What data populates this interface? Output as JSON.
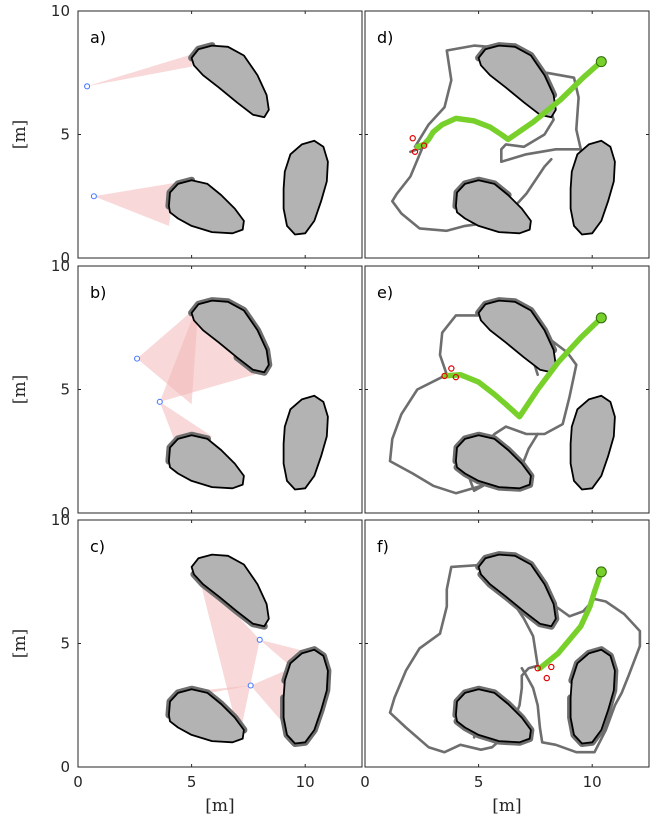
{
  "chart_data": {
    "type": "scatter",
    "x_label": "[m]",
    "y_label": "[m]",
    "xlim": [
      0,
      12.5
    ],
    "ylim": [
      0,
      10
    ],
    "x_ticks": [
      "0",
      "5",
      "10"
    ],
    "y_ticks": [
      "0",
      "5",
      "10"
    ],
    "colors": {
      "obstacle_fill": "#b3b3b3",
      "obstacle_edge": "#000000",
      "observed_edge": "#6e6e6e",
      "view_cone": "#f2b8b8",
      "sensor": "#4a7cff",
      "roadmap": "#6e6e6e",
      "path": "#77d12a",
      "start_marker": "#e00000",
      "goal_marker": "#77d12a"
    },
    "obstacles": [
      {
        "name": "top",
        "outline": [
          [
            5.0,
            8.1
          ],
          [
            5.3,
            8.45
          ],
          [
            5.9,
            8.6
          ],
          [
            6.6,
            8.55
          ],
          [
            7.3,
            8.2
          ],
          [
            7.9,
            7.4
          ],
          [
            8.3,
            6.6
          ],
          [
            8.4,
            6.0
          ],
          [
            8.2,
            5.7
          ],
          [
            7.7,
            5.8
          ],
          [
            7.0,
            6.3
          ],
          [
            6.2,
            6.9
          ],
          [
            5.5,
            7.4
          ],
          [
            5.1,
            7.8
          ]
        ]
      },
      {
        "name": "bottom-left",
        "outline": [
          [
            4.0,
            2.1
          ],
          [
            4.05,
            2.65
          ],
          [
            4.4,
            3.0
          ],
          [
            5.0,
            3.15
          ],
          [
            5.7,
            3.0
          ],
          [
            6.3,
            2.55
          ],
          [
            6.9,
            2.0
          ],
          [
            7.3,
            1.5
          ],
          [
            7.25,
            1.15
          ],
          [
            6.8,
            1.0
          ],
          [
            5.9,
            1.05
          ],
          [
            5.0,
            1.3
          ],
          [
            4.4,
            1.6
          ],
          [
            4.05,
            1.85
          ]
        ]
      },
      {
        "name": "right",
        "outline": [
          [
            9.1,
            3.5
          ],
          [
            9.35,
            4.2
          ],
          [
            9.85,
            4.6
          ],
          [
            10.4,
            4.75
          ],
          [
            10.8,
            4.5
          ],
          [
            11.0,
            3.9
          ],
          [
            10.95,
            3.1
          ],
          [
            10.7,
            2.3
          ],
          [
            10.4,
            1.5
          ],
          [
            10.0,
            1.0
          ],
          [
            9.55,
            0.95
          ],
          [
            9.2,
            1.3
          ],
          [
            9.05,
            2.0
          ],
          [
            9.05,
            2.8
          ]
        ]
      }
    ],
    "panels": [
      {
        "label": "a)",
        "observed": [
          {
            "obstacle": 0,
            "from": 0,
            "to": 2
          },
          {
            "obstacle": 1,
            "from": 0,
            "to": 3
          }
        ],
        "sensors": [
          {
            "x": 0.4,
            "y": 6.95,
            "cone": [
              [
                5.2,
                8.3
              ],
              [
                5.0,
                7.75
              ]
            ]
          },
          {
            "x": 0.7,
            "y": 2.5,
            "cone": [
              [
                4.3,
                3.05
              ],
              [
                4.0,
                1.3
              ]
            ]
          }
        ]
      },
      {
        "label": "b)",
        "observed": [
          {
            "obstacle": 0,
            "from": 0,
            "to": 10
          },
          {
            "obstacle": 1,
            "from": 0,
            "to": 4
          }
        ],
        "sensors": [
          {
            "x": 2.6,
            "y": 6.25,
            "cone": [
              [
                5.3,
                8.4
              ],
              [
                5.0,
                4.4
              ]
            ]
          },
          {
            "x": 3.6,
            "y": 4.5,
            "cone": [
              [
                5.0,
                7.8
              ],
              [
                8.3,
                5.75
              ],
              [
                4.6,
                2.1
              ],
              [
                5.9,
                3.1
              ]
            ]
          }
        ]
      },
      {
        "label": "c)",
        "observed": [
          {
            "obstacle": 0,
            "from": 8,
            "to": 13
          },
          {
            "obstacle": 1,
            "from": 0,
            "to": 7
          },
          {
            "obstacle": 2,
            "from": 0,
            "to": 13
          }
        ],
        "sensors": [
          {
            "x": 8.0,
            "y": 5.15,
            "cone": [
              [
                5.3,
                7.8
              ],
              [
                7.1,
                1.2
              ],
              [
                9.2,
                4.2
              ],
              [
                10.8,
                4.5
              ]
            ]
          },
          {
            "x": 7.6,
            "y": 3.3,
            "cone": [
              [
                4.3,
                3.0
              ],
              [
                5.8,
                3.0
              ],
              [
                9.2,
                1.6
              ],
              [
                10.9,
                4.6
              ]
            ]
          }
        ]
      },
      {
        "label": "d)",
        "observed": [
          {
            "obstacle": 0,
            "from": 0,
            "to": 6
          },
          {
            "obstacle": 1,
            "from": 0,
            "to": 5
          }
        ],
        "roadmap": [
          [
            [
              2.0,
              4.3
            ],
            [
              2.3,
              4.4
            ],
            [
              2.5,
              4.45
            ]
          ],
          [
            [
              2.2,
              4.5
            ],
            [
              2.8,
              5.4
            ],
            [
              3.5,
              6.1
            ],
            [
              3.8,
              7.2
            ],
            [
              3.6,
              8.4
            ],
            [
              4.8,
              8.6
            ],
            [
              6.1,
              8.5
            ],
            [
              6.8,
              8.0
            ],
            [
              7.3,
              7.5
            ],
            [
              7.7,
              6.9
            ],
            [
              8.1,
              6.2
            ],
            [
              8.3,
              5.6
            ],
            [
              7.9,
              5.0
            ],
            [
              7.0,
              4.5
            ],
            [
              6.2,
              4.6
            ],
            [
              6.0,
              4.4
            ],
            [
              6.0,
              3.9
            ],
            [
              7.1,
              4.2
            ],
            [
              8.4,
              4.4
            ],
            [
              9.5,
              4.4
            ],
            [
              9.3,
              5.2
            ],
            [
              9.4,
              6.5
            ],
            [
              9.2,
              7.3
            ],
            [
              8.0,
              7.5
            ],
            [
              7.0,
              7.2
            ],
            [
              6.3,
              7.4
            ],
            [
              5.8,
              7.9
            ],
            [
              5.4,
              8.2
            ]
          ],
          [
            [
              9.5,
              4.4
            ],
            [
              9.5,
              4.35
            ],
            [
              9.6,
              4.25
            ]
          ],
          [
            [
              2.5,
              4.4
            ],
            [
              2.0,
              3.3
            ],
            [
              1.4,
              2.6
            ],
            [
              1.2,
              2.3
            ],
            [
              1.6,
              1.8
            ],
            [
              2.4,
              1.2
            ],
            [
              3.6,
              1.1
            ],
            [
              4.4,
              1.3
            ],
            [
              5.2,
              1.4
            ],
            [
              6.4,
              1.9
            ],
            [
              7.1,
              2.6
            ],
            [
              7.9,
              3.7
            ],
            [
              8.2,
              4.0
            ]
          ],
          [
            [
              4.8,
              2.0
            ],
            [
              5.6,
              2.1
            ],
            [
              6.3,
              2.1
            ],
            [
              6.7,
              1.8
            ]
          ]
        ],
        "path": [
          [
            2.3,
            4.5
          ],
          [
            2.6,
            4.6
          ],
          [
            2.8,
            4.8
          ],
          [
            3.0,
            5.1
          ],
          [
            3.4,
            5.4
          ],
          [
            4.0,
            5.65
          ],
          [
            4.8,
            5.55
          ],
          [
            5.5,
            5.3
          ],
          [
            6.0,
            5.0
          ],
          [
            6.3,
            4.8
          ],
          [
            7.4,
            5.5
          ],
          [
            8.6,
            6.4
          ],
          [
            9.6,
            7.3
          ],
          [
            10.4,
            7.95
          ]
        ],
        "start": [
          [
            2.1,
            4.85
          ],
          [
            2.6,
            4.55
          ],
          [
            2.2,
            4.3
          ]
        ],
        "goal": [
          10.4,
          7.95
        ]
      },
      {
        "label": "e)",
        "observed": [
          {
            "obstacle": 0,
            "from": 0,
            "to": 6
          },
          {
            "obstacle": 1,
            "from": 0,
            "to": 13
          }
        ],
        "roadmap": [
          [
            [
              3.6,
              5.6
            ],
            [
              3.3,
              6.4
            ],
            [
              3.4,
              7.3
            ],
            [
              4.0,
              8.0
            ],
            [
              5.5,
              8.0
            ],
            [
              6.3,
              8.0
            ],
            [
              6.9,
              7.9
            ],
            [
              7.9,
              7.2
            ],
            [
              8.9,
              6.5
            ],
            [
              9.3,
              6.0
            ],
            [
              9.0,
              4.7
            ],
            [
              8.7,
              3.6
            ],
            [
              7.9,
              3.2
            ],
            [
              7.1,
              3.2
            ],
            [
              6.2,
              3.5
            ],
            [
              5.7,
              3.2
            ],
            [
              5.1,
              2.6
            ],
            [
              4.8,
              2.1
            ],
            [
              4.6,
              1.4
            ],
            [
              4.8,
              0.9
            ],
            [
              5.2,
              1.1
            ],
            [
              5.2,
              1.7
            ],
            [
              5.7,
              2.1
            ],
            [
              6.3,
              2.2
            ]
          ],
          [
            [
              3.6,
              5.6
            ],
            [
              2.3,
              5.0
            ],
            [
              1.6,
              4.0
            ],
            [
              1.2,
              3.0
            ],
            [
              1.1,
              2.1
            ],
            [
              2.1,
              1.6
            ],
            [
              3.0,
              1.1
            ],
            [
              4.0,
              0.8
            ],
            [
              5.5,
              1.2
            ],
            [
              6.3,
              1.4
            ],
            [
              6.9,
              1.9
            ],
            [
              7.2,
              2.6
            ],
            [
              7.6,
              3.2
            ]
          ],
          [
            [
              5.4,
              7.6
            ],
            [
              5.9,
              7.5
            ],
            [
              6.5,
              7.3
            ],
            [
              6.8,
              6.8
            ],
            [
              7.4,
              6.2
            ],
            [
              7.6,
              5.6
            ]
          ]
        ],
        "path": [
          [
            3.5,
            5.55
          ],
          [
            4.2,
            5.6
          ],
          [
            5.0,
            5.3
          ],
          [
            5.7,
            4.8
          ],
          [
            6.2,
            4.4
          ],
          [
            6.8,
            3.9
          ],
          [
            7.6,
            5.0
          ],
          [
            8.5,
            6.1
          ],
          [
            9.5,
            7.1
          ],
          [
            10.4,
            7.9
          ]
        ],
        "start": [
          [
            3.8,
            5.85
          ],
          [
            3.5,
            5.55
          ],
          [
            4.0,
            5.5
          ]
        ],
        "goal": [
          10.4,
          7.9
        ]
      },
      {
        "label": "f)",
        "observed": [
          {
            "obstacle": 0,
            "from": 0,
            "to": 13
          },
          {
            "obstacle": 1,
            "from": 0,
            "to": 13
          },
          {
            "obstacle": 2,
            "from": 0,
            "to": 13
          }
        ],
        "roadmap": [
          [
            [
              3.3,
              5.4
            ],
            [
              3.6,
              6.5
            ],
            [
              3.6,
              7.2
            ],
            [
              3.8,
              8.1
            ],
            [
              5.4,
              8.2
            ],
            [
              6.6,
              8.1
            ],
            [
              7.8,
              7.3
            ],
            [
              8.4,
              6.5
            ],
            [
              9.0,
              6.1
            ],
            [
              9.6,
              6.3
            ],
            [
              10.1,
              6.8
            ],
            [
              10.6,
              6.7
            ],
            [
              11.4,
              6.2
            ],
            [
              12.1,
              5.5
            ],
            [
              12.1,
              4.9
            ],
            [
              11.6,
              3.7
            ],
            [
              11.3,
              3.0
            ],
            [
              11.0,
              2.5
            ],
            [
              10.6,
              1.5
            ],
            [
              10.1,
              0.6
            ],
            [
              9.3,
              0.6
            ],
            [
              8.4,
              0.9
            ],
            [
              7.8,
              1.0
            ],
            [
              7.7,
              1.6
            ],
            [
              7.6,
              2.5
            ],
            [
              7.4,
              3.2
            ],
            [
              7.1,
              3.7
            ],
            [
              6.9,
              4.0
            ]
          ],
          [
            [
              3.3,
              5.4
            ],
            [
              2.4,
              4.8
            ],
            [
              1.8,
              3.9
            ],
            [
              1.3,
              2.8
            ],
            [
              1.1,
              2.2
            ],
            [
              1.8,
              1.6
            ],
            [
              2.8,
              0.8
            ],
            [
              3.5,
              0.6
            ],
            [
              4.2,
              0.9
            ],
            [
              5.1,
              0.7
            ],
            [
              5.6,
              0.8
            ],
            [
              6.2,
              1.3
            ],
            [
              6.5,
              1.8
            ],
            [
              6.8,
              2.5
            ],
            [
              6.9,
              3.2
            ],
            [
              6.9,
              3.7
            ],
            [
              7.2,
              4.0
            ],
            [
              7.6,
              4.1
            ]
          ],
          [
            [
              7.6,
              4.1
            ],
            [
              7.4,
              5.3
            ],
            [
              7.0,
              6.0
            ],
            [
              6.5,
              6.7
            ]
          ],
          [
            [
              4.8,
              1.2
            ],
            [
              5.0,
              1.8
            ],
            [
              5.7,
              2.0
            ],
            [
              6.3,
              2.0
            ],
            [
              6.5,
              1.8
            ]
          ]
        ],
        "path": [
          [
            7.7,
            4.0
          ],
          [
            8.5,
            4.6
          ],
          [
            9.5,
            5.7
          ],
          [
            9.9,
            6.5
          ],
          [
            10.1,
            7.1
          ],
          [
            10.4,
            7.9
          ]
        ],
        "start": [
          [
            7.6,
            4.0
          ],
          [
            8.2,
            4.05
          ],
          [
            8.0,
            3.6
          ]
        ],
        "goal": [
          10.4,
          7.9
        ]
      }
    ]
  }
}
